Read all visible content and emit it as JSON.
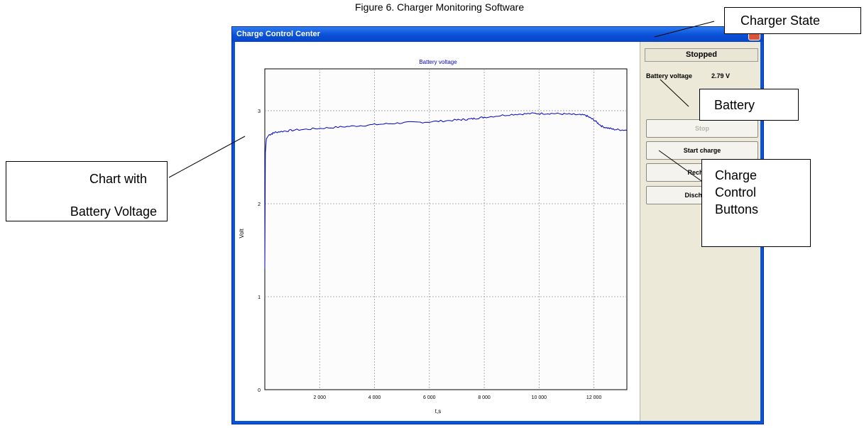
{
  "figure": {
    "caption": "Figure 6. Charger Monitoring Software"
  },
  "window": {
    "title": "Charge Control Center"
  },
  "side": {
    "status": "Stopped",
    "battery_voltage_label": "Battery voltage",
    "battery_voltage_value": "2.79 V",
    "buttons": [
      "Stop",
      "Start charge",
      "Recharge",
      "Discharge t"
    ]
  },
  "callouts": {
    "charger_state": "Charger State",
    "battery": "Battery",
    "charge_control_1": "Charge",
    "charge_control_2": "Control",
    "charge_control_3": "Buttons",
    "chart_1": "Chart with",
    "chart_2": "Battery Voltage"
  },
  "chart_data": {
    "type": "line",
    "title": "Battery voltage",
    "xlabel": "t,s",
    "ylabel": "Volt",
    "xlim": [
      0,
      13200
    ],
    "ylim": [
      0,
      3.45
    ],
    "x_ticks": [
      "2 000",
      "4 000",
      "6 000",
      "8 000",
      "10 000",
      "12 000"
    ],
    "x_tick_values": [
      2000,
      4000,
      6000,
      8000,
      10000,
      12000
    ],
    "y_ticks": [
      "0",
      "1",
      "2",
      "3"
    ],
    "y_tick_values": [
      0,
      1,
      2,
      3
    ],
    "grid": true,
    "series": [
      {
        "color": "#0000cc",
        "x": [
          0,
          20,
          60,
          150,
          400,
          1000,
          2000,
          3000,
          4000,
          5000,
          6000,
          7000,
          7500,
          8000,
          9000,
          9800,
          10500,
          11200,
          11700,
          12000,
          12300,
          12700,
          13200
        ],
        "y": [
          1.3,
          2.55,
          2.7,
          2.74,
          2.77,
          2.79,
          2.81,
          2.83,
          2.85,
          2.87,
          2.88,
          2.9,
          2.91,
          2.93,
          2.96,
          2.97,
          2.97,
          2.96,
          2.95,
          2.9,
          2.83,
          2.8,
          2.79
        ]
      }
    ]
  }
}
